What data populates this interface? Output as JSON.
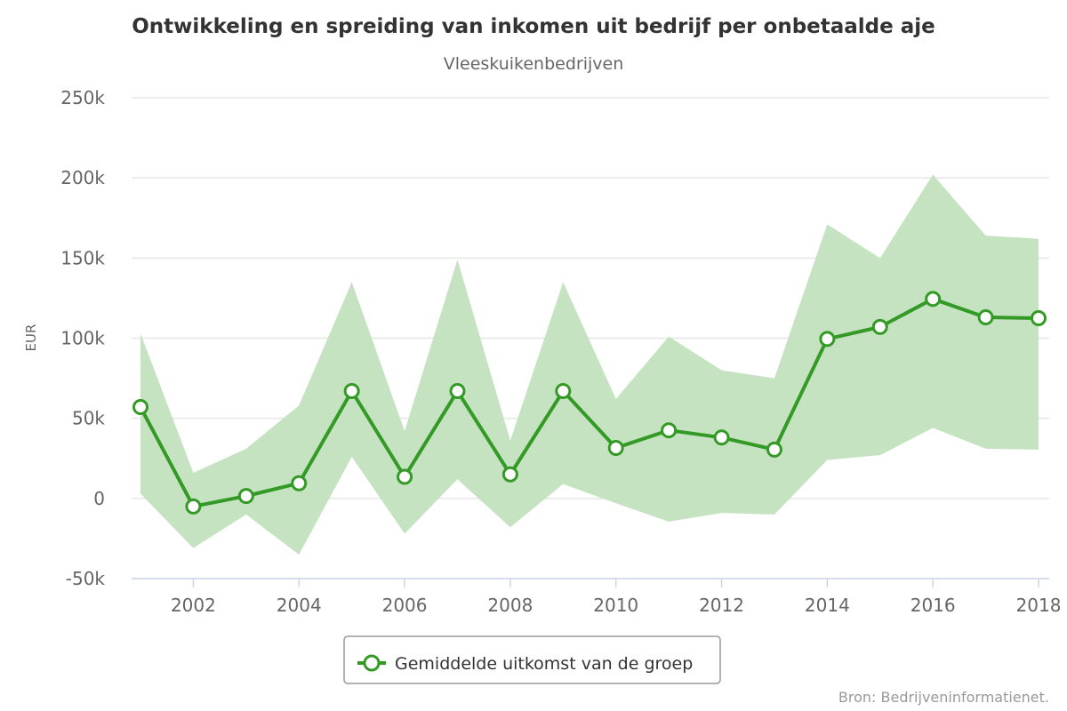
{
  "chart_data": {
    "type": "line",
    "title": "Ontwikkeling en spreiding van inkomen uit bedrijf per onbetaalde aje",
    "subtitle": "Vleeskuikenbedrijven",
    "ylabel": "EUR",
    "xlabel": "",
    "xlim": [
      2001,
      2018
    ],
    "ylim": [
      -50000,
      250000
    ],
    "x_ticks": [
      2002,
      2004,
      2006,
      2008,
      2010,
      2012,
      2014,
      2016,
      2018
    ],
    "y_ticks": [
      -50000,
      0,
      50000,
      100000,
      150000,
      200000,
      250000
    ],
    "y_tick_labels": [
      "-50k",
      "0",
      "50k",
      "100k",
      "150k",
      "200k",
      "250k"
    ],
    "grid": true,
    "legend_position": "bottom",
    "x": [
      2001,
      2002,
      2003,
      2004,
      2005,
      2006,
      2007,
      2008,
      2009,
      2010,
      2011,
      2012,
      2013,
      2014,
      2015,
      2016,
      2017,
      2018
    ],
    "series": [
      {
        "name": "Gemiddelde uitkomst van de groep",
        "type": "line",
        "color": "#339a25",
        "values": [
          57000,
          -5000,
          1500,
          9500,
          67000,
          13500,
          67000,
          15000,
          67000,
          31500,
          42500,
          38000,
          30500,
          99500,
          107000,
          124500,
          113000,
          112500
        ]
      },
      {
        "type": "arearange",
        "color": "#c5e3c1",
        "low": [
          3000,
          -31000,
          -10000,
          -35000,
          26000,
          -22000,
          12000,
          -18000,
          9000,
          -3000,
          -14500,
          -9000,
          -10000,
          24000,
          27000,
          44000,
          31000,
          30500
        ],
        "high": [
          103000,
          16000,
          31000,
          58000,
          135000,
          42000,
          149000,
          36000,
          135000,
          62000,
          101000,
          80000,
          75000,
          171000,
          150000,
          202000,
          164000,
          162000
        ]
      }
    ]
  },
  "legend": {
    "label": "Gemiddelde uitkomst van de groep"
  },
  "credits": "Bron: Bedrijveninformatienet."
}
